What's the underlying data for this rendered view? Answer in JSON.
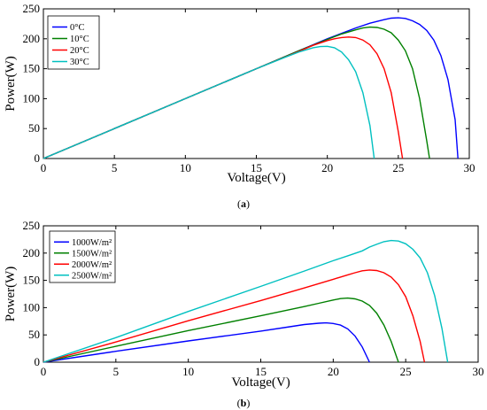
{
  "chart_data": [
    {
      "type": "line",
      "xlabel": "Voltage(V)",
      "ylabel": "Power(W)",
      "sublabel_pre": "(",
      "sublabel": "a",
      "sublabel_post": ")",
      "xlim": [
        0,
        30
      ],
      "ylim": [
        0,
        250
      ],
      "xticks": [
        0,
        5,
        10,
        15,
        20,
        25,
        30
      ],
      "yticks": [
        0,
        50,
        100,
        150,
        200,
        250
      ],
      "grid": false,
      "legend_position": "top-left",
      "series": [
        {
          "name": "0°C",
          "color": "#0000ff",
          "x": [
            0,
            5,
            10,
            15,
            18,
            20,
            21,
            22,
            23,
            24,
            24.5,
            25,
            25.5,
            26,
            26.5,
            27,
            27.5,
            28,
            28.5,
            29,
            29.2
          ],
          "y": [
            0,
            50,
            100,
            150,
            180,
            200,
            209,
            218,
            226,
            232,
            234.5,
            235,
            234,
            230,
            224,
            214,
            198,
            172,
            132,
            65,
            0
          ]
        },
        {
          "name": "10°C",
          "color": "#008000",
          "x": [
            0,
            5,
            10,
            15,
            18,
            20,
            21,
            22,
            22.5,
            23,
            23.5,
            24,
            24.5,
            25,
            25.5,
            26,
            26.5,
            27,
            27.2
          ],
          "y": [
            0,
            50,
            100,
            150,
            180,
            199,
            208,
            215,
            218,
            219.5,
            219,
            216,
            210,
            198,
            180,
            150,
            100,
            30,
            0
          ]
        },
        {
          "name": "20°C",
          "color": "#ff0000",
          "x": [
            0,
            5,
            10,
            15,
            18,
            19,
            20,
            20.5,
            21,
            21.5,
            22,
            22.5,
            23,
            23.5,
            24,
            24.5,
            25,
            25.3
          ],
          "y": [
            0,
            50,
            100,
            150,
            179,
            189,
            197,
            200,
            202,
            203,
            202,
            198,
            190,
            175,
            150,
            110,
            45,
            0
          ]
        },
        {
          "name": "30°C",
          "color": "#00c0c0",
          "x": [
            0,
            5,
            10,
            15,
            17,
            18,
            19,
            19.5,
            20,
            20.5,
            21,
            21.5,
            22,
            22.5,
            23,
            23.3
          ],
          "y": [
            0,
            50,
            100,
            150,
            169,
            178,
            185,
            187,
            187.5,
            185,
            178,
            165,
            145,
            110,
            55,
            0
          ]
        }
      ]
    },
    {
      "type": "line",
      "xlabel": "Voltage(V)",
      "ylabel": "Power(W)",
      "sublabel_pre": "(",
      "sublabel": "b",
      "sublabel_post": ")",
      "xlim": [
        0,
        30
      ],
      "ylim": [
        0,
        250
      ],
      "xticks": [
        0,
        5,
        10,
        15,
        20,
        25,
        30
      ],
      "yticks": [
        0,
        50,
        100,
        150,
        200,
        250
      ],
      "grid": false,
      "legend_position": "top-left",
      "series": [
        {
          "name": "1000W/m²",
          "color": "#0000ff",
          "x": [
            0,
            5,
            10,
            15,
            17,
            18,
            19,
            19.5,
            20,
            20.5,
            21,
            21.5,
            22,
            22.5
          ],
          "y": [
            0,
            20,
            39,
            57,
            65,
            69,
            71.5,
            72,
            71,
            68,
            61,
            48,
            28,
            0
          ]
        },
        {
          "name": "1500W/m²",
          "color": "#008000",
          "x": [
            0,
            5,
            10,
            15,
            18,
            19,
            20,
            20.5,
            21,
            21.5,
            22,
            22.5,
            23,
            23.5,
            24,
            24.5
          ],
          "y": [
            0,
            29,
            58,
            85,
            102,
            108,
            114,
            116.5,
            117.5,
            116,
            112,
            104,
            90,
            68,
            38,
            0
          ]
        },
        {
          "name": "2000W/m²",
          "color": "#ff0000",
          "x": [
            0,
            5,
            10,
            15,
            18,
            20,
            21,
            21.5,
            22,
            22.5,
            23,
            23.5,
            24,
            24.5,
            25,
            25.5,
            26,
            26.3
          ],
          "y": [
            0,
            37,
            76,
            113,
            136,
            152,
            160,
            164,
            167.5,
            169,
            168,
            164,
            156,
            142,
            120,
            85,
            38,
            0
          ]
        },
        {
          "name": "2500W/m²",
          "color": "#00c0c0",
          "x": [
            0,
            5,
            10,
            15,
            18,
            20,
            21,
            22,
            22.5,
            23,
            23.5,
            24,
            24.5,
            25,
            25.5,
            26,
            26.5,
            27,
            27.5,
            27.9
          ],
          "y": [
            0,
            45,
            93,
            139,
            167,
            186,
            195,
            204,
            211,
            216,
            221,
            223,
            222,
            217,
            207,
            191,
            164,
            122,
            62,
            0
          ]
        }
      ]
    }
  ]
}
